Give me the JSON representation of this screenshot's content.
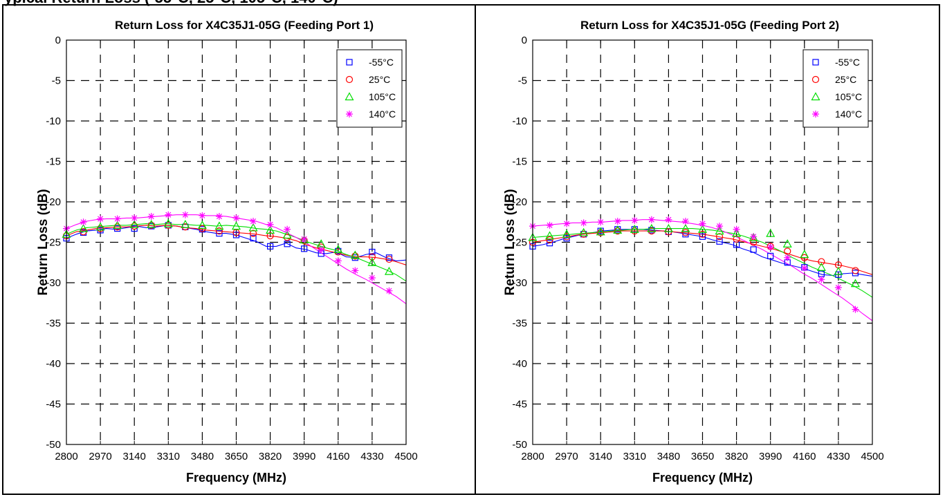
{
  "page": {
    "top_fragment_left": "ypical Return Loss (-55°C, 25°C, 105°C, 140°C)",
    "top_fragment_right": ""
  },
  "chart_data": [
    {
      "type": "line",
      "title": "Return Loss for X4C35J1-05G (Feeding Port 1)",
      "xlabel": "Frequency (MHz)",
      "ylabel": "Return Loss (dB)",
      "xlim": [
        2800,
        4500
      ],
      "ylim": [
        -50,
        0
      ],
      "xticks": [
        2800,
        2970,
        3140,
        3310,
        3480,
        3650,
        3820,
        3990,
        4160,
        4330,
        4500
      ],
      "yticks": [
        0,
        -5,
        -10,
        -15,
        -20,
        -25,
        -30,
        -35,
        -40,
        -45,
        -50
      ],
      "grid": true,
      "grid_style": "dashed",
      "legend_position": "top-right",
      "series": [
        {
          "name": "-55°C",
          "color": "#0000ff",
          "marker": "square",
          "x": [
            2800,
            2850,
            2900,
            2950,
            3000,
            3050,
            3100,
            3150,
            3200,
            3250,
            3300,
            3350,
            3400,
            3450,
            3500,
            3550,
            3600,
            3650,
            3700,
            3750,
            3800,
            3850,
            3900,
            3950,
            4000,
            4050,
            4100,
            4150,
            4200,
            4250,
            4300,
            4350,
            4400,
            4450,
            4500
          ],
          "y": [
            -24.5,
            -24.0,
            -23.6,
            -23.5,
            -23.3,
            -23.4,
            -23.2,
            -23.0,
            -23.2,
            -23.1,
            -22.9,
            -23.0,
            -23.2,
            -23.4,
            -23.7,
            -23.9,
            -23.9,
            -24.1,
            -24.5,
            -24.9,
            -25.5,
            -25.5,
            -25.1,
            -25.7,
            -25.9,
            -26.3,
            -26.4,
            -26.2,
            -26.8,
            -26.9,
            -26.5,
            -26.3,
            -26.9,
            -27.3,
            -27.2
          ],
          "marker_x": [
            2800,
            2885,
            2970,
            3055,
            3140,
            3225,
            3310,
            3395,
            3480,
            3565,
            3650,
            3735,
            3820,
            3905,
            3990,
            4075,
            4160,
            4245,
            4330,
            4415
          ],
          "marker_y": [
            -24.5,
            -23.8,
            -23.5,
            -23.3,
            -23.3,
            -23.0,
            -22.9,
            -23.1,
            -23.4,
            -23.9,
            -24.1,
            -24.5,
            -25.5,
            -25.2,
            -25.8,
            -26.4,
            -26.1,
            -26.9,
            -26.2,
            -26.9
          ]
        },
        {
          "name": "25°C",
          "color": "#ff0000",
          "marker": "circle",
          "x": [
            2800,
            2850,
            2900,
            2950,
            3000,
            3050,
            3100,
            3150,
            3200,
            3250,
            3300,
            3350,
            3400,
            3450,
            3500,
            3550,
            3600,
            3650,
            3700,
            3750,
            3800,
            3850,
            3900,
            3950,
            4000,
            4050,
            4100,
            4150,
            4200,
            4250,
            4300,
            4350,
            4400,
            4450,
            4500
          ],
          "y": [
            -24.2,
            -23.7,
            -23.5,
            -23.3,
            -23.2,
            -23.1,
            -23.1,
            -23.0,
            -22.9,
            -23.0,
            -22.9,
            -23.0,
            -23.2,
            -23.3,
            -23.5,
            -23.6,
            -23.7,
            -23.8,
            -23.9,
            -24.0,
            -24.2,
            -24.3,
            -24.5,
            -24.8,
            -25.3,
            -25.7,
            -26.0,
            -26.3,
            -26.6,
            -26.8,
            -26.8,
            -26.9,
            -27.1,
            -27.4,
            -27.8
          ],
          "marker_x": [
            2800,
            2885,
            2970,
            3055,
            3140,
            3225,
            3310,
            3395,
            3480,
            3565,
            3650,
            3735,
            3820,
            3905,
            3990,
            4075,
            4160,
            4245,
            4330,
            4415
          ],
          "marker_y": [
            -24.2,
            -23.7,
            -23.3,
            -23.1,
            -23.0,
            -22.9,
            -22.9,
            -23.1,
            -23.3,
            -23.6,
            -23.8,
            -23.9,
            -24.2,
            -24.4,
            -24.8,
            -25.6,
            -26.2,
            -26.7,
            -26.8,
            -27.1
          ]
        },
        {
          "name": "105°C",
          "color": "#00dd00",
          "marker": "triangle",
          "x": [
            2800,
            2850,
            2900,
            2950,
            3000,
            3050,
            3100,
            3150,
            3200,
            3250,
            3300,
            3350,
            3400,
            3450,
            3500,
            3550,
            3600,
            3650,
            3700,
            3750,
            3800,
            3850,
            3900,
            3950,
            4000,
            4050,
            4100,
            4150,
            4200,
            4250,
            4300,
            4350,
            4400,
            4450,
            4500
          ],
          "y": [
            -24.0,
            -23.5,
            -23.2,
            -23.1,
            -23.0,
            -22.9,
            -22.9,
            -22.8,
            -22.7,
            -22.8,
            -22.7,
            -22.8,
            -22.8,
            -22.9,
            -22.9,
            -23.0,
            -22.9,
            -23.0,
            -23.1,
            -23.3,
            -23.4,
            -23.6,
            -24.0,
            -24.4,
            -24.9,
            -25.3,
            -25.7,
            -26.0,
            -26.5,
            -26.9,
            -27.4,
            -27.9,
            -28.4,
            -29.0,
            -29.8
          ],
          "marker_x": [
            2800,
            2885,
            2970,
            3055,
            3140,
            3225,
            3310,
            3395,
            3480,
            3565,
            3650,
            3735,
            3820,
            3905,
            3990,
            4075,
            4160,
            4245,
            4330,
            4415
          ],
          "marker_y": [
            -24.0,
            -23.3,
            -23.1,
            -22.9,
            -22.8,
            -22.8,
            -22.7,
            -22.8,
            -22.9,
            -23.0,
            -23.0,
            -23.2,
            -23.5,
            -24.1,
            -24.7,
            -25.2,
            -25.9,
            -26.6,
            -27.5,
            -28.6
          ]
        },
        {
          "name": "140°C",
          "color": "#ff00ff",
          "marker": "asterisk",
          "x": [
            2800,
            2850,
            2900,
            2950,
            3000,
            3050,
            3100,
            3150,
            3200,
            3250,
            3300,
            3350,
            3400,
            3450,
            3500,
            3550,
            3600,
            3650,
            3700,
            3750,
            3800,
            3850,
            3900,
            3950,
            4000,
            4050,
            4100,
            4150,
            4200,
            4250,
            4300,
            4350,
            4400,
            4450,
            4500
          ],
          "y": [
            -23.3,
            -22.8,
            -22.4,
            -22.2,
            -22.1,
            -22.1,
            -22.0,
            -22.0,
            -21.9,
            -21.8,
            -21.7,
            -21.6,
            -21.6,
            -21.6,
            -21.7,
            -21.7,
            -21.8,
            -22.0,
            -22.2,
            -22.4,
            -22.8,
            -23.2,
            -23.8,
            -24.4,
            -25.1,
            -25.9,
            -26.7,
            -27.5,
            -28.3,
            -29.0,
            -29.6,
            -30.3,
            -31.0,
            -31.7,
            -32.6
          ],
          "marker_x": [
            2800,
            2885,
            2970,
            3055,
            3140,
            3225,
            3310,
            3395,
            3480,
            3565,
            3650,
            3735,
            3820,
            3905,
            3990,
            4075,
            4160,
            4245,
            4330,
            4415
          ],
          "marker_y": [
            -23.3,
            -22.5,
            -22.1,
            -22.1,
            -22.0,
            -21.8,
            -21.6,
            -21.6,
            -21.7,
            -21.8,
            -22.0,
            -22.4,
            -22.8,
            -23.4,
            -24.6,
            -25.9,
            -27.3,
            -28.5,
            -29.4,
            -31.0
          ]
        }
      ]
    },
    {
      "type": "line",
      "title": "Return Loss for X4C35J1-05G (Feeding Port 2)",
      "xlabel": "Frequency (MHz)",
      "ylabel": "Return Loss (dB)",
      "xlim": [
        2800,
        4500
      ],
      "ylim": [
        -50,
        0
      ],
      "xticks": [
        2800,
        2970,
        3140,
        3310,
        3480,
        3650,
        3820,
        3990,
        4160,
        4330,
        4500
      ],
      "yticks": [
        0,
        -5,
        -10,
        -15,
        -20,
        -25,
        -30,
        -35,
        -40,
        -45,
        -50
      ],
      "grid": true,
      "grid_style": "dashed",
      "legend_position": "top-right",
      "series": [
        {
          "name": "-55°C",
          "color": "#0000ff",
          "marker": "square",
          "x": [
            2800,
            2850,
            2900,
            2950,
            3000,
            3050,
            3100,
            3150,
            3200,
            3250,
            3300,
            3350,
            3400,
            3450,
            3500,
            3550,
            3600,
            3650,
            3700,
            3750,
            3800,
            3850,
            3900,
            3950,
            4000,
            4050,
            4100,
            4150,
            4200,
            4250,
            4300,
            4350,
            4400,
            4450,
            4500
          ],
          "y": [
            -25.5,
            -25.3,
            -25.0,
            -24.6,
            -24.3,
            -24.0,
            -23.8,
            -23.6,
            -23.5,
            -23.4,
            -23.4,
            -23.4,
            -23.5,
            -23.6,
            -23.7,
            -23.9,
            -24.1,
            -24.3,
            -24.7,
            -25.0,
            -25.3,
            -25.8,
            -26.2,
            -26.8,
            -27.2,
            -27.6,
            -27.9,
            -28.2,
            -28.6,
            -29.0,
            -29.1,
            -28.9,
            -28.8,
            -29.0,
            -29.2
          ],
          "marker_x": [
            2800,
            2885,
            2970,
            3055,
            3140,
            3225,
            3310,
            3395,
            3480,
            3565,
            3650,
            3735,
            3820,
            3905,
            3990,
            4075,
            4160,
            4245,
            4330,
            4415
          ],
          "marker_y": [
            -25.5,
            -25.1,
            -24.5,
            -24.0,
            -23.6,
            -23.4,
            -23.4,
            -23.5,
            -23.7,
            -24.0,
            -24.3,
            -24.9,
            -25.3,
            -25.9,
            -26.7,
            -27.5,
            -28.1,
            -28.9,
            -29.0,
            -28.8
          ]
        },
        {
          "name": "25°C",
          "color": "#ff0000",
          "marker": "circle",
          "x": [
            2800,
            2850,
            2900,
            2950,
            3000,
            3050,
            3100,
            3150,
            3200,
            3250,
            3300,
            3350,
            3400,
            3450,
            3500,
            3550,
            3600,
            3650,
            3700,
            3750,
            3800,
            3850,
            3900,
            3950,
            4000,
            4050,
            4100,
            4150,
            4200,
            4250,
            4300,
            4350,
            4400,
            4450,
            4500
          ],
          "y": [
            -25.0,
            -24.8,
            -24.6,
            -24.4,
            -24.2,
            -24.0,
            -23.9,
            -23.8,
            -23.7,
            -23.6,
            -23.6,
            -23.6,
            -23.6,
            -23.6,
            -23.7,
            -23.8,
            -23.9,
            -24.0,
            -24.2,
            -24.4,
            -24.6,
            -24.9,
            -25.2,
            -25.5,
            -25.8,
            -26.2,
            -26.6,
            -27.0,
            -27.3,
            -27.5,
            -27.7,
            -27.9,
            -28.2,
            -28.6,
            -29.0
          ],
          "marker_x": [
            2800,
            2885,
            2970,
            3055,
            3140,
            3225,
            3310,
            3395,
            3480,
            3565,
            3650,
            3735,
            3820,
            3905,
            3990,
            4075,
            4160,
            4245,
            4330,
            4415
          ],
          "marker_y": [
            -25.0,
            -24.7,
            -24.3,
            -24.0,
            -23.8,
            -23.6,
            -23.6,
            -23.6,
            -23.7,
            -23.8,
            -24.0,
            -24.3,
            -24.6,
            -25.0,
            -25.5,
            -26.1,
            -26.9,
            -27.4,
            -27.8,
            -28.5
          ]
        },
        {
          "name": "105°C",
          "color": "#00dd00",
          "marker": "triangle",
          "x": [
            2800,
            2850,
            2900,
            2950,
            3000,
            3050,
            3100,
            3150,
            3200,
            3250,
            3300,
            3350,
            3400,
            3450,
            3500,
            3550,
            3600,
            3650,
            3700,
            3750,
            3800,
            3850,
            3900,
            3950,
            4000,
            4050,
            4100,
            4150,
            4200,
            4250,
            4300,
            4350,
            4400,
            4450,
            4500
          ],
          "y": [
            -24.4,
            -24.3,
            -24.2,
            -24.1,
            -24.0,
            -23.9,
            -23.8,
            -23.7,
            -23.6,
            -23.5,
            -23.4,
            -23.4,
            -23.3,
            -23.3,
            -23.3,
            -23.3,
            -23.3,
            -23.4,
            -23.5,
            -23.7,
            -23.9,
            -24.2,
            -24.6,
            -25.0,
            -25.6,
            -26.2,
            -26.9,
            -27.5,
            -28.1,
            -28.6,
            -29.1,
            -29.7,
            -30.3,
            -31.0,
            -31.8
          ],
          "marker_x": [
            2800,
            2885,
            2970,
            3055,
            3140,
            3225,
            3310,
            3395,
            3480,
            3565,
            3650,
            3735,
            3820,
            3905,
            3990,
            4075,
            4160,
            4245,
            4330,
            4415
          ],
          "marker_y": [
            -24.4,
            -24.2,
            -24.0,
            -23.8,
            -23.7,
            -23.5,
            -23.4,
            -23.3,
            -23.3,
            -23.3,
            -23.4,
            -23.6,
            -23.9,
            -24.4,
            -23.9,
            -25.2,
            -26.5,
            -28.1,
            -28.6,
            -30.1
          ]
        },
        {
          "name": "140°C",
          "color": "#ff00ff",
          "marker": "asterisk",
          "x": [
            2800,
            2850,
            2900,
            2950,
            3000,
            3050,
            3100,
            3150,
            3200,
            3250,
            3300,
            3350,
            3400,
            3450,
            3500,
            3550,
            3600,
            3650,
            3700,
            3750,
            3800,
            3850,
            3900,
            3950,
            4000,
            4050,
            4100,
            4150,
            4200,
            4250,
            4300,
            4350,
            4400,
            4450,
            4500
          ],
          "y": [
            -23.0,
            -22.9,
            -22.8,
            -22.7,
            -22.6,
            -22.6,
            -22.5,
            -22.5,
            -22.4,
            -22.3,
            -22.3,
            -22.2,
            -22.2,
            -22.3,
            -22.4,
            -22.5,
            -22.7,
            -22.9,
            -23.2,
            -23.6,
            -24.1,
            -24.7,
            -25.3,
            -25.9,
            -26.6,
            -27.3,
            -28.0,
            -28.8,
            -29.5,
            -30.3,
            -31.1,
            -31.9,
            -32.8,
            -33.8,
            -34.7
          ],
          "marker_x": [
            2800,
            2885,
            2970,
            3055,
            3140,
            3225,
            3310,
            3395,
            3480,
            3565,
            3650,
            3735,
            3820,
            3905,
            3990,
            4075,
            4160,
            4245,
            4330,
            4415
          ],
          "marker_y": [
            -23.0,
            -22.9,
            -22.7,
            -22.6,
            -22.5,
            -22.4,
            -22.3,
            -22.2,
            -22.2,
            -22.4,
            -22.7,
            -23.0,
            -23.4,
            -24.3,
            -25.6,
            -26.9,
            -28.2,
            -29.6,
            -30.6,
            -33.3
          ]
        }
      ]
    }
  ]
}
